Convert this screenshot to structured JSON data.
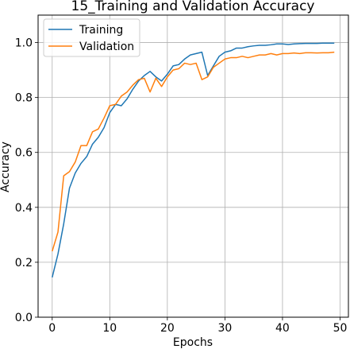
{
  "chart_data": {
    "type": "line",
    "title": "15_Training and Validation Accuracy",
    "xlabel": "Epochs",
    "ylabel": "Accuracy",
    "xlim": [
      -2.45,
      51.45
    ],
    "ylim": [
      0.0,
      1.1
    ],
    "xticks": [
      0,
      10,
      20,
      30,
      40,
      50
    ],
    "yticks": [
      0.0,
      0.2,
      0.4,
      0.6,
      0.8,
      1.0
    ],
    "xtick_labels": [
      "0",
      "10",
      "20",
      "30",
      "40",
      "50"
    ],
    "ytick_labels": [
      "0.0",
      "0.2",
      "0.4",
      "0.6",
      "0.8",
      "1.0"
    ],
    "grid": true,
    "legend_position": "top-left",
    "x": [
      0,
      1,
      2,
      3,
      4,
      5,
      6,
      7,
      8,
      9,
      10,
      11,
      12,
      13,
      14,
      15,
      16,
      17,
      18,
      19,
      20,
      21,
      22,
      23,
      24,
      25,
      26,
      27,
      28,
      29,
      30,
      31,
      32,
      33,
      34,
      35,
      36,
      37,
      38,
      39,
      40,
      41,
      42,
      43,
      44,
      45,
      46,
      47,
      48,
      49
    ],
    "series": [
      {
        "name": "Training",
        "color": "#1f77b4",
        "values": [
          0.145,
          0.23,
          0.34,
          0.47,
          0.525,
          0.56,
          0.585,
          0.63,
          0.655,
          0.69,
          0.745,
          0.775,
          0.77,
          0.795,
          0.83,
          0.86,
          0.88,
          0.895,
          0.875,
          0.86,
          0.885,
          0.915,
          0.92,
          0.94,
          0.955,
          0.96,
          0.965,
          0.88,
          0.915,
          0.95,
          0.965,
          0.97,
          0.98,
          0.98,
          0.985,
          0.988,
          0.99,
          0.99,
          0.992,
          0.995,
          0.995,
          0.993,
          0.995,
          0.996,
          0.997,
          0.997,
          0.997,
          0.998,
          0.998,
          0.998
        ]
      },
      {
        "name": "Validation",
        "color": "#ff7f0e",
        "values": [
          0.24,
          0.31,
          0.515,
          0.53,
          0.565,
          0.625,
          0.625,
          0.675,
          0.685,
          0.725,
          0.77,
          0.775,
          0.805,
          0.82,
          0.845,
          0.865,
          0.87,
          0.82,
          0.87,
          0.84,
          0.875,
          0.9,
          0.905,
          0.925,
          0.92,
          0.925,
          0.865,
          0.875,
          0.91,
          0.925,
          0.94,
          0.945,
          0.945,
          0.95,
          0.945,
          0.95,
          0.955,
          0.955,
          0.96,
          0.955,
          0.96,
          0.96,
          0.962,
          0.96,
          0.963,
          0.963,
          0.962,
          0.963,
          0.963,
          0.965
        ]
      }
    ]
  }
}
